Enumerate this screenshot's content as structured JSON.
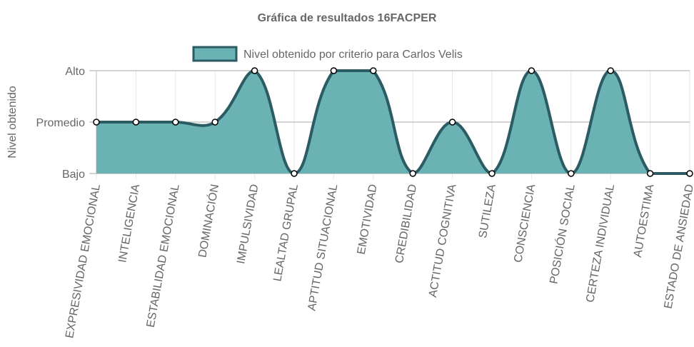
{
  "chart_data": {
    "type": "area",
    "title": "Gráfica de resultados 16FACPER",
    "y_label": "Nivel obtenido",
    "categories": [
      "EXPRESIVIDAD EMOCIONAL",
      "INTELIGENCIA",
      "ESTABILIDAD EMOCIONAL",
      "DOMINACIÓN",
      "IMPULSIVIDAD",
      "LEALTAD GRUPAL",
      "APTITUD SITUACIONAL",
      "EMOTIVIDAD",
      "CREDIBILIDAD",
      "ACTITUD COGNITIVA",
      "SUTILEZA",
      "CONSCIENCIA",
      "POSICIÓN SOCIAL",
      "CERTEZA INDIVIDUAL",
      "AUTOESTIMA",
      "ESTADO DE ANSIEDAD"
    ],
    "series": [
      {
        "name": "Nivel obtenido por criterio para Carlos Velis",
        "color": "#6ab2b4",
        "border_color": "#2b5b63",
        "values": [
          2,
          2,
          2,
          2,
          3,
          1,
          3,
          3,
          1,
          2,
          1,
          3,
          1,
          3,
          1,
          1
        ]
      }
    ],
    "ylim": [
      1,
      3
    ],
    "yticks": [
      {
        "value": 1,
        "label": "Bajo"
      },
      {
        "value": 2,
        "label": "Promedio"
      },
      {
        "value": 3,
        "label": "Alto"
      }
    ],
    "grid": true,
    "legend": "top"
  }
}
